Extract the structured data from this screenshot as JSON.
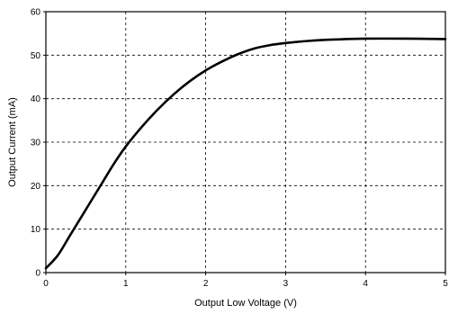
{
  "chart_data": {
    "type": "line",
    "title": "",
    "xlabel": "Output Low Voltage (V)",
    "ylabel": "Output Current (mA)",
    "xlim": [
      0,
      5
    ],
    "ylim": [
      0,
      60
    ],
    "x_ticks": [
      0,
      1,
      2,
      3,
      4,
      5
    ],
    "y_ticks": [
      0,
      10,
      20,
      30,
      40,
      50,
      60
    ],
    "grid": true,
    "grid_style": "dashed",
    "legend": "none",
    "series": [
      {
        "color": "#000000",
        "x": [
          0,
          0.15,
          0.3,
          0.5,
          0.7,
          0.85,
          1.0,
          1.2,
          1.4,
          1.6,
          1.8,
          2.0,
          2.2,
          2.4,
          2.6,
          2.8,
          3.0,
          3.3,
          3.6,
          4.0,
          4.5,
          5.0
        ],
        "y": [
          1,
          4,
          8.5,
          14.5,
          20.5,
          25,
          29,
          33.5,
          37.5,
          41,
          44,
          46.5,
          48.5,
          50.2,
          51.5,
          52.3,
          52.8,
          53.3,
          53.6,
          53.8,
          53.8,
          53.7
        ]
      }
    ]
  }
}
